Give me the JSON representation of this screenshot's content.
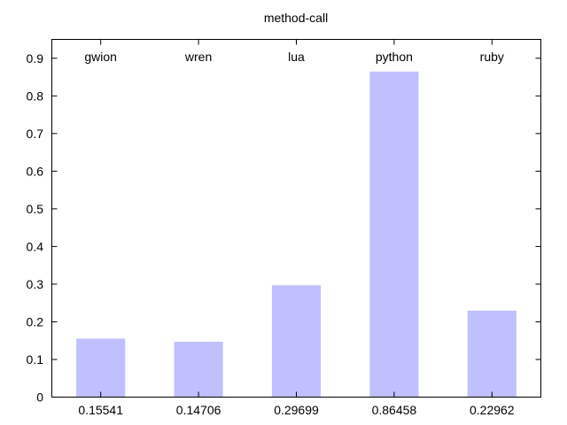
{
  "chart_data": {
    "type": "bar",
    "title": "method-call",
    "categories": [
      "gwion",
      "wren",
      "lua",
      "python",
      "ruby"
    ],
    "values": [
      0.15541,
      0.14706,
      0.29699,
      0.86458,
      0.22962
    ],
    "value_labels": [
      "0.15541",
      "0.14706",
      "0.29699",
      "0.86458",
      "0.22962"
    ],
    "yticks": [
      "0",
      "0.1",
      "0.2",
      "0.3",
      "0.4",
      "0.5",
      "0.6",
      "0.7",
      "0.8",
      "0.9"
    ],
    "ylim": [
      0,
      0.95
    ],
    "bar_color": "#c0c0ff",
    "axis_color": "#000000",
    "grid": false
  }
}
